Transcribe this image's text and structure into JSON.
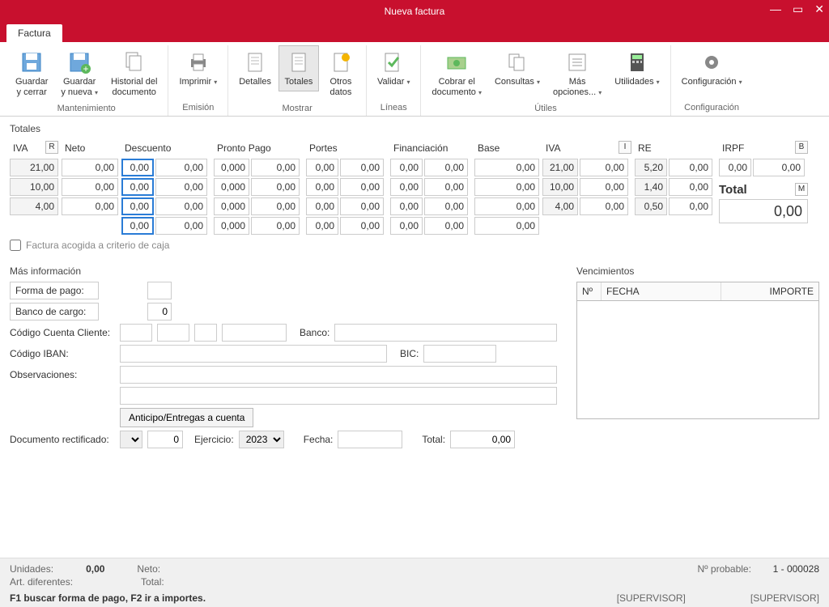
{
  "window": {
    "title": "Nueva factura"
  },
  "tabs": {
    "main": "Factura"
  },
  "ribbon": {
    "groups": [
      {
        "label": "Mantenimiento",
        "buttons": [
          {
            "name": "guardar-cerrar",
            "label": "Guardar\ny cerrar",
            "dd": false,
            "icon": "save"
          },
          {
            "name": "guardar-nueva",
            "label": "Guardar\ny nueva",
            "dd": true,
            "icon": "save-plus"
          },
          {
            "name": "historial",
            "label": "Historial del\ndocumento",
            "dd": false,
            "icon": "history"
          }
        ]
      },
      {
        "label": "Emisión",
        "buttons": [
          {
            "name": "imprimir",
            "label": "Imprimir",
            "dd": true,
            "icon": "print"
          }
        ]
      },
      {
        "label": "Mostrar",
        "buttons": [
          {
            "name": "detalles",
            "label": "Detalles",
            "dd": false,
            "icon": "doc"
          },
          {
            "name": "totales",
            "label": "Totales",
            "dd": false,
            "icon": "doc",
            "active": true
          },
          {
            "name": "otros-datos",
            "label": "Otros\ndatos",
            "dd": false,
            "icon": "doc-sun"
          }
        ]
      },
      {
        "label": "Líneas",
        "buttons": [
          {
            "name": "validar",
            "label": "Validar",
            "dd": true,
            "icon": "check"
          }
        ]
      },
      {
        "label": "Útiles",
        "buttons": [
          {
            "name": "cobrar",
            "label": "Cobrar el\ndocumento",
            "dd": true,
            "icon": "money"
          },
          {
            "name": "consultas",
            "label": "Consultas",
            "dd": true,
            "icon": "docs"
          },
          {
            "name": "mas-opciones",
            "label": "Más\nopciones...",
            "dd": true,
            "icon": "list"
          },
          {
            "name": "utilidades",
            "label": "Utilidades",
            "dd": true,
            "icon": "calc"
          }
        ]
      },
      {
        "label": "Configuración",
        "buttons": [
          {
            "name": "configuracion",
            "label": "Configuración",
            "dd": true,
            "icon": "gear"
          }
        ]
      }
    ]
  },
  "totales": {
    "title": "Totales",
    "cols": {
      "iva_head": "IVA",
      "iva_btn": "R",
      "neto_head": "Neto",
      "descuento_head": "Descuento",
      "pronto_head": "Pronto Pago",
      "portes_head": "Portes",
      "financ_head": "Financiación",
      "base_head": "Base",
      "iva2_head": "IVA",
      "iva2_btn": "I",
      "re_head": "RE",
      "irpf_head": "IRPF",
      "irpf_btn": "B"
    },
    "rows": [
      {
        "iva": "21,00",
        "neto": "0,00",
        "desc_p": "0,00",
        "desc_v": "0,00",
        "pp_p": "0,000",
        "pp_v": "0,00",
        "por_p": "0,00",
        "por_v": "0,00",
        "fin_p": "0,00",
        "fin_v": "0,00",
        "base": "0,00",
        "iva2p": "21,00",
        "iva2v": "0,00",
        "re_p": "5,20",
        "re_v": "0,00",
        "irpf_p": "0,00",
        "irpf_v": "0,00"
      },
      {
        "iva": "10,00",
        "neto": "0,00",
        "desc_p": "0,00",
        "desc_v": "0,00",
        "pp_p": "0,000",
        "pp_v": "0,00",
        "por_p": "0,00",
        "por_v": "0,00",
        "fin_p": "0,00",
        "fin_v": "0,00",
        "base": "0,00",
        "iva2p": "10,00",
        "iva2v": "0,00",
        "re_p": "1,40",
        "re_v": "0,00"
      },
      {
        "iva": "4,00",
        "neto": "0,00",
        "desc_p": "0,00",
        "desc_v": "0,00",
        "pp_p": "0,000",
        "pp_v": "0,00",
        "por_p": "0,00",
        "por_v": "0,00",
        "fin_p": "0,00",
        "fin_v": "0,00",
        "base": "0,00",
        "iva2p": "4,00",
        "iva2v": "0,00",
        "re_p": "0,50",
        "re_v": "0,00"
      },
      {
        "desc_p": "0,00",
        "desc_v": "0,00",
        "pp_p": "0,000",
        "pp_v": "0,00",
        "por_p": "0,00",
        "por_v": "0,00",
        "fin_p": "0,00",
        "fin_v": "0,00",
        "base": "0,00"
      }
    ],
    "total_label": "Total",
    "total_btn": "M",
    "total_value": "0,00",
    "caja_label": "Factura acogida a criterio de caja"
  },
  "mas_info": {
    "title": "Más información",
    "forma_pago": "Forma de pago:",
    "banco_cargo": "Banco de cargo:",
    "banco_cargo_val": "0",
    "codigo_cuenta": "Código Cuenta Cliente:",
    "banco_label": "Banco:",
    "codigo_iban": "Código IBAN:",
    "bic_label": "BIC:",
    "observaciones": "Observaciones:",
    "anticipo_btn": "Anticipo/Entregas a cuenta",
    "doc_rect": "Documento rectificado:",
    "doc_rect_val": "0",
    "ejercicio": "Ejercicio:",
    "ejercicio_val": "2023",
    "fecha": "Fecha:",
    "total_label": "Total:",
    "total_val": "0,00"
  },
  "venc": {
    "title": "Vencimientos",
    "col_n": "Nº",
    "col_fecha": "FECHA",
    "col_importe": "IMPORTE"
  },
  "status": {
    "unidades": "Unidades:",
    "unidades_val": "0,00",
    "neto": "Neto:",
    "art": "Art. diferentes:",
    "total": "Total:",
    "probable": "Nº probable:",
    "probable_val": "1 - 000028",
    "hint": "F1 buscar forma de pago, F2 ir a importes.",
    "sup1": "[SUPERVISOR]",
    "sup2": "[SUPERVISOR]"
  },
  "colors": {
    "brand": "#c8102e",
    "border": "#cccccc",
    "focus": "#2a7cd6"
  }
}
